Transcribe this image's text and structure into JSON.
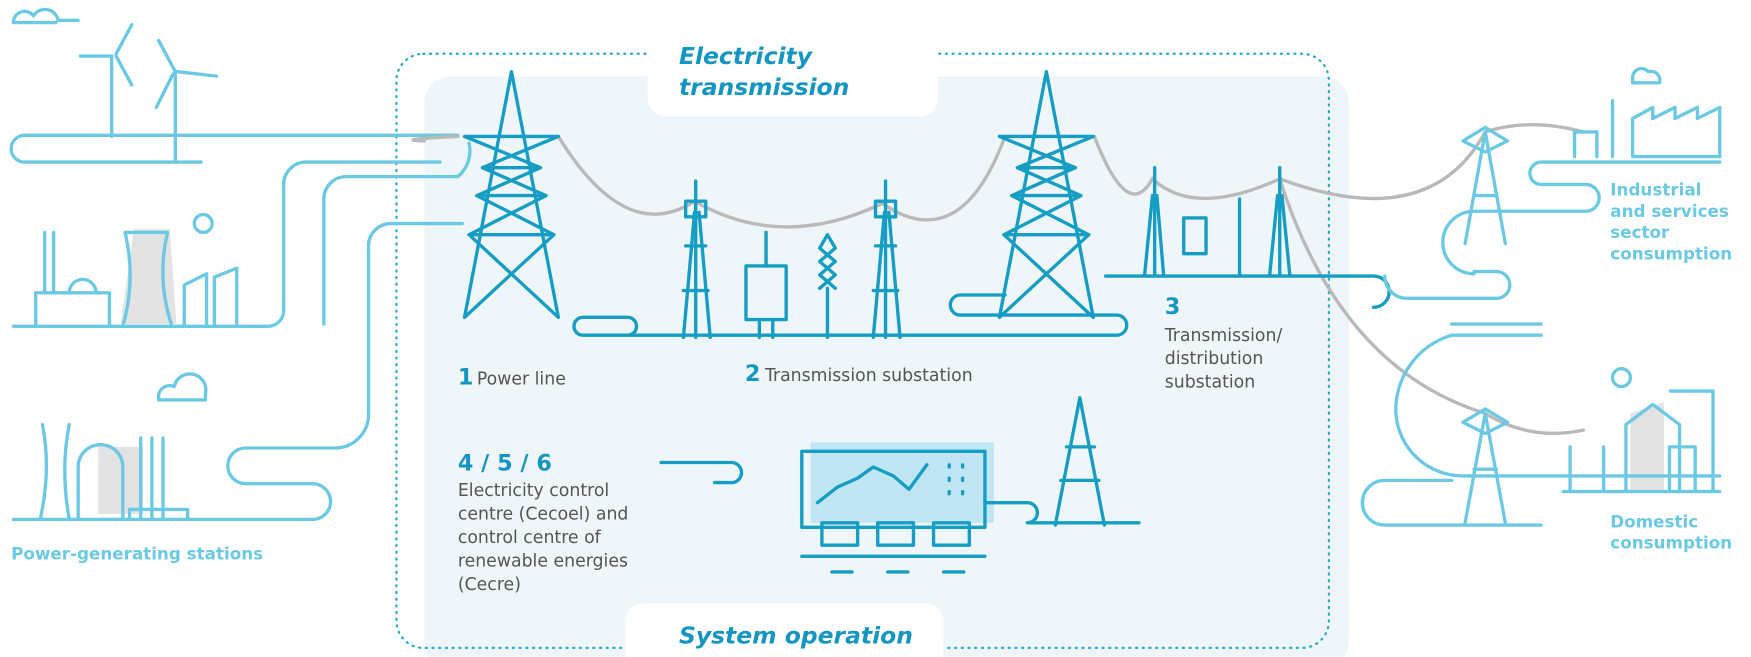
{
  "header": {
    "title_lines": [
      "Electricity",
      "transmission"
    ]
  },
  "footer": {
    "title": "System operation"
  },
  "sources": {
    "label": "Power-generating stations"
  },
  "nodes": [
    {
      "number": "1",
      "label": "Power line"
    },
    {
      "number": "2",
      "label": "Transmission substation"
    },
    {
      "number": "3",
      "label_lines": [
        "Transmission/",
        "distribution",
        "substation"
      ]
    },
    {
      "number": "4 / 5 / 6",
      "label_lines": [
        "Electricity control",
        "centre (Cecoel) and",
        "control centre of",
        "renewable energies",
        "(Cecre)"
      ]
    }
  ],
  "consumers": [
    {
      "label_lines": [
        "Industrial",
        "and services",
        "sector",
        "consumption"
      ]
    },
    {
      "label_lines": [
        "Domestic",
        "consumption"
      ]
    }
  ]
}
